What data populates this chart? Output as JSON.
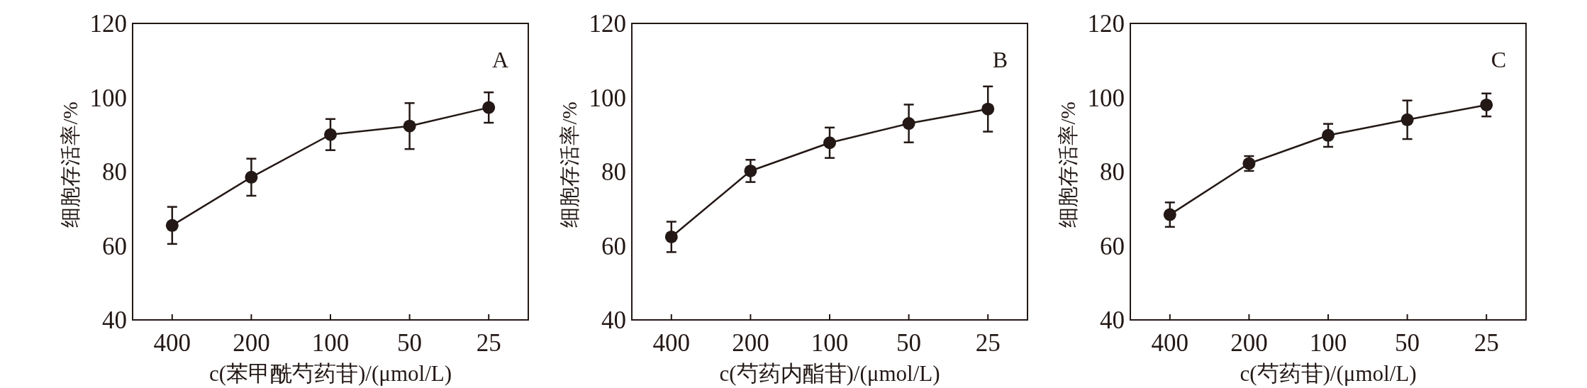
{
  "chart_data": [
    {
      "type": "line",
      "categories": [
        "400",
        "200",
        "100",
        "50",
        "25"
      ],
      "xlabel": "c(苯甲酰芍药苷)/(μmol/L)",
      "ylabel": "细胞存活率/%",
      "ylim": [
        40,
        120
      ],
      "yticks": [
        40,
        60,
        80,
        100,
        120
      ],
      "marker": "circle",
      "line_style": "solid",
      "grid": false,
      "annotations": [
        "A"
      ],
      "series": [
        {
          "color": "#231815",
          "values": [
            65.5,
            78.5,
            90,
            92.3,
            97.3
          ],
          "errors": [
            5,
            5,
            4.2,
            6.2,
            4.1
          ]
        }
      ]
    },
    {
      "type": "line",
      "categories": [
        "400",
        "200",
        "100",
        "50",
        "25"
      ],
      "xlabel": "c(芍药内酯苷)/(μmol/L)",
      "ylabel": "细胞存活率/%",
      "ylim": [
        40,
        120
      ],
      "yticks": [
        40,
        60,
        80,
        100,
        120
      ],
      "marker": "circle",
      "line_style": "solid",
      "grid": false,
      "annotations": [
        "B"
      ],
      "series": [
        {
          "color": "#231815",
          "values": [
            62.4,
            80.2,
            87.8,
            93,
            96.9
          ],
          "errors": [
            4.1,
            3,
            4.1,
            5.1,
            6.1
          ]
        }
      ]
    },
    {
      "type": "line",
      "categories": [
        "400",
        "200",
        "100",
        "50",
        "25"
      ],
      "xlabel": "c(芍药苷)/(μmol/L)",
      "ylabel": "细胞存活率/%",
      "ylim": [
        40,
        120
      ],
      "yticks": [
        40,
        60,
        80,
        100,
        120
      ],
      "marker": "circle",
      "line_style": "solid",
      "grid": false,
      "annotations": [
        "C"
      ],
      "series": [
        {
          "color": "#231815",
          "values": [
            68.4,
            82.2,
            89.8,
            94,
            98
          ],
          "errors": [
            3.3,
            2,
            3.1,
            5.2,
            3.1
          ]
        }
      ]
    }
  ]
}
